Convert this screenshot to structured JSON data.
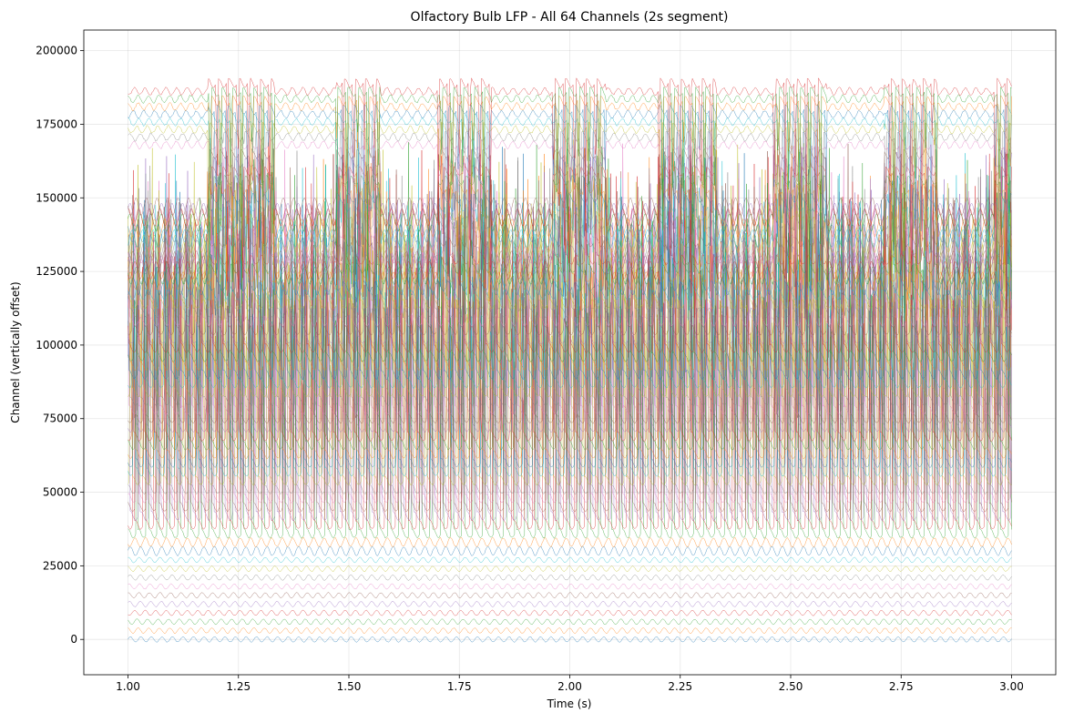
{
  "chart_data": {
    "type": "line",
    "title": "Olfactory Bulb LFP - All 64 Channels (2s segment)",
    "xlabel": "Time (s)",
    "ylabel": "Channel (vertically offset)",
    "xlim": [
      0.9,
      3.1
    ],
    "ylim": [
      -12000,
      207000
    ],
    "x_ticks": [
      1.0,
      1.25,
      1.5,
      1.75,
      2.0,
      2.25,
      2.5,
      2.75,
      3.0
    ],
    "x_tick_labels": [
      "1.00",
      "1.25",
      "1.50",
      "1.75",
      "2.00",
      "2.25",
      "2.50",
      "2.75",
      "3.00"
    ],
    "y_ticks": [
      0,
      25000,
      50000,
      75000,
      100000,
      125000,
      150000,
      175000,
      200000
    ],
    "y_tick_labels": [
      "0",
      "25000",
      "50000",
      "75000",
      "100000",
      "125000",
      "150000",
      "175000",
      "200000"
    ],
    "grid": true,
    "legend": "none",
    "channel_count": 64,
    "channel_offset": 3000,
    "colors": [
      "#1f77b4",
      "#ff7f0e",
      "#2ca02c",
      "#d62728",
      "#9467bd",
      "#8c564b",
      "#e377c2",
      "#7f7f7f",
      "#bcbd22",
      "#17becf"
    ],
    "series_summary": {
      "time_range": [
        1.0,
        3.0
      ],
      "baseline_channels_0_9_range": [
        0,
        27000
      ],
      "dominant_spike_range": [
        30000,
        170000
      ],
      "burst_plateau_level": 188000,
      "burst_plateau_low": 168000,
      "burst_starts_s": [
        1.0,
        1.33,
        1.57,
        1.82,
        2.08,
        2.33,
        2.58,
        2.83
      ],
      "burst_ends_s": [
        1.18,
        1.47,
        1.7,
        1.96,
        2.2,
        2.46,
        2.71,
        2.96
      ]
    }
  }
}
